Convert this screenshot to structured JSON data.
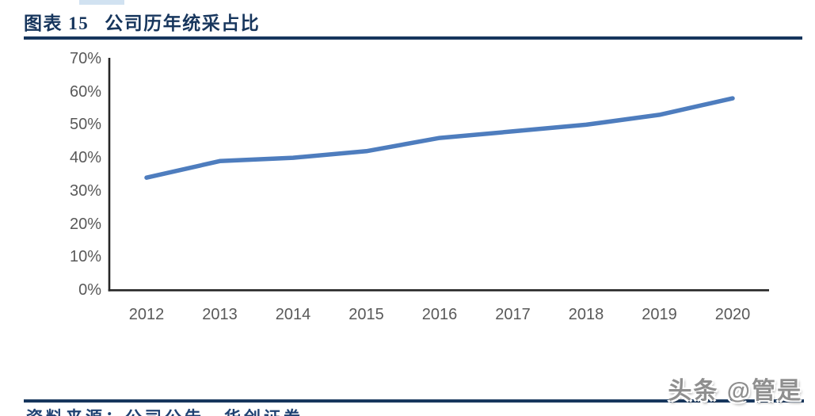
{
  "header": {
    "figure_label": "图表 15",
    "figure_title": "公司历年统采占比"
  },
  "footer": {
    "source_text": "资料来源：公司公告，华创证券",
    "watermark": "头条 @管是"
  },
  "colors": {
    "accent_navy": "#17365D",
    "series_blue": "#4E7DBE",
    "axis_line": "#262626",
    "tick_text": "#595959",
    "watermark_gray": "#8F8F8F"
  },
  "chart_data": {
    "type": "line",
    "title": "公司历年统采占比",
    "categories": [
      "2012",
      "2013",
      "2014",
      "2015",
      "2016",
      "2017",
      "2018",
      "2019",
      "2020"
    ],
    "values": [
      34,
      39,
      40,
      42,
      46,
      48,
      50,
      53,
      58
    ],
    "unit": "%",
    "ylim": [
      0,
      70
    ],
    "y_tick_step": 10,
    "y_tick_labels": [
      "70%",
      "60%",
      "50%",
      "40%",
      "30%",
      "20%",
      "10%",
      "0%"
    ],
    "xlabel": "",
    "ylabel": "",
    "grid": false,
    "legend": "none"
  }
}
